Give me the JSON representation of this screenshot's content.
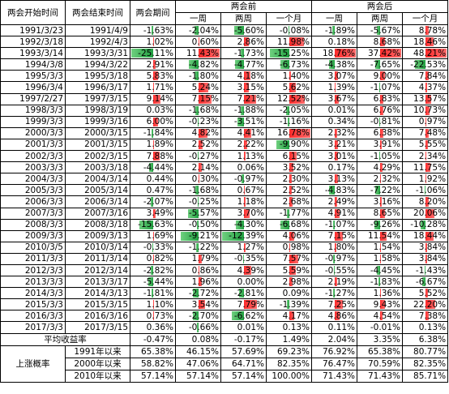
{
  "headers": {
    "start": "两会开始时间",
    "end": "两会结束时间",
    "during": "两会期间",
    "before": {
      "label": "两会前",
      "periods": [
        "一周",
        "两周",
        "一个月"
      ]
    },
    "after": {
      "label": "两会后",
      "periods": [
        "一周",
        "两周",
        "一个月"
      ]
    }
  },
  "rows": [
    [
      "1991/3/23",
      "1991/4/9",
      "-1.63%",
      "-2.04%",
      "-5.60%",
      "-0.08%",
      "-1.89%",
      "-5.67%",
      "8.78%"
    ],
    [
      "1992/3/18",
      "1992/4/3",
      "1.02%",
      "0.60%",
      "2.86%",
      "11.98%",
      "0.18%",
      "8.68%",
      "18.46%"
    ],
    [
      "1993/3/14",
      "1993/3/31",
      "-25.11%",
      "11.43%",
      "-1.73%",
      "-15.25%",
      "18.76%",
      "37.42%",
      "48.21%"
    ],
    [
      "1994/3/8",
      "1994/3/22",
      "2.91%",
      "-4.82%",
      "-4.77%",
      "-6.73%",
      "-4.38%",
      "-7.65%",
      "-22.53%"
    ],
    [
      "1995/3/3",
      "1995/3/18",
      "5.83%",
      "-1.80%",
      "4.18%",
      "1.40%",
      "3.07%",
      "9.00%",
      "7.84%"
    ],
    [
      "1996/3/4",
      "1996/3/17",
      "1.71%",
      "5.24%",
      "3.15%",
      "5.62%",
      "1.39%",
      "-1.07%",
      "4.37%"
    ],
    [
      "1997/2/27",
      "1997/3/15",
      "9.14%",
      "7.15%",
      "7.21%",
      "12.52%",
      "3.67%",
      "6.83%",
      "13.57%"
    ],
    [
      "1998/3/3",
      "1998/3/19",
      "0.03%",
      "-1.68%",
      "-1.88%",
      "-2.05%",
      "0.01%",
      "6.76%",
      "10.73%"
    ],
    [
      "1999/3/3",
      "1999/3/16",
      "6.00%",
      "-0.23%",
      "-3.51%",
      "-1.16%",
      "0.34%",
      "-0.81%",
      "0.97%"
    ],
    [
      "2000/3/3",
      "2000/3/15",
      "-1.84%",
      "4.82%",
      "4.41%",
      "16.78%",
      "2.32%",
      "6.38%",
      "7.48%"
    ],
    [
      "2001/3/3",
      "2001/3/15",
      "1.89%",
      "2.52%",
      "2.22%",
      "-9.90%",
      "3.21%",
      "3.91%",
      "5.55%"
    ],
    [
      "2002/3/3",
      "2002/3/15",
      "7.88%",
      "-0.27%",
      "1.13%",
      "6.15%",
      "3.01%",
      "-1.05%",
      "2.34%"
    ],
    [
      "2003/3/3",
      "2003/3/18",
      "-4.44%",
      "2.14%",
      "0.06%",
      "3.52%",
      "0.17%",
      "4.29%",
      "11.75%"
    ],
    [
      "2004/3/3",
      "2004/3/14",
      "0.44%",
      "0.30%",
      "-0.97%",
      "2.30%",
      "3.13%",
      "2.32%",
      "1.92%"
    ],
    [
      "2005/3/3",
      "2005/3/14",
      "0.47%",
      "-1.68%",
      "0.67%",
      "2.52%",
      "-4.83%",
      "-7.22%",
      "-1.06%"
    ],
    [
      "2006/3/3",
      "2006/3/14",
      "-2.07%",
      "-0.25%",
      "1.18%",
      "2.68%",
      "2.49%",
      "3.16%",
      "8.20%"
    ],
    [
      "2007/3/3",
      "2007/3/16",
      "3.49%",
      "-5.57%",
      "3.70%",
      "-1.77%",
      "4.91%",
      "8.65%",
      "20.06%"
    ],
    [
      "2008/3/3",
      "2008/3/18",
      "-15.63%",
      "-0.50%",
      "-4.30%",
      "-6.68%",
      "-1.07%",
      "-9.26%",
      "-10.28%"
    ],
    [
      "2009/3/3",
      "2009/3/13",
      "1.69%",
      "-9.21%",
      "-12.39%",
      "4.06%",
      "7.15%",
      "11.54%",
      "18.44%"
    ],
    [
      "2010/3/5",
      "2010/3/14",
      "-0.33%",
      "-1.22%",
      "1.27%",
      "0.98%",
      "1.80%",
      "1.54%",
      "3.84%"
    ],
    [
      "2011/3/3",
      "2011/3/14",
      "0.82%",
      "1.79%",
      "-0.35%",
      "7.57%",
      "-0.97%",
      "1.58%",
      "3.84%"
    ],
    [
      "2012/3/3",
      "2012/3/14",
      "-2.82%",
      "0.86%",
      "4.39%",
      "5.59%",
      "-0.55%",
      "-4.45%",
      "-1.43%"
    ],
    [
      "2013/3/3",
      "2013/3/17",
      "-5.44%",
      "1.96%",
      "0.00%",
      "2.98%",
      "2.19%",
      "-1.83%",
      "-6.67%"
    ],
    [
      "2014/3/3",
      "2014/3/13",
      "-1.81%",
      "-2.72%",
      "-2.81%",
      "0.09%",
      "-1.27%",
      "1.36%",
      "5.52%"
    ],
    [
      "2015/3/3",
      "2015/3/15",
      "1.10%",
      "3.54%",
      "7.79%",
      "-1.39%",
      "7.25%",
      "9.43%",
      "22.20%"
    ],
    [
      "2016/3/3",
      "2016/3/16",
      "0.73%",
      "-2.70%",
      "-6.62%",
      "4.17%",
      "4.86%",
      "4.54%",
      "7.38%"
    ],
    [
      "2017/3/3",
      "2017/3/15",
      "0.36%",
      "-0.66%",
      "0.01%",
      "0.13%",
      "0.11%",
      "-0.01%",
      "0.13%"
    ]
  ],
  "summary": {
    "average": {
      "label": "平均收益率",
      "values": [
        "-0.47%",
        "0.08%",
        "-0.17%",
        "1.49%",
        "2.04%",
        "3.35%",
        "6.38%"
      ]
    },
    "up_prob": {
      "label": "上涨概率",
      "rows": [
        {
          "since": "1991年以来",
          "values": [
            "65.38%",
            "46.15%",
            "57.69%",
            "69.23%",
            "76.92%",
            "65.38%",
            "80.77%"
          ]
        },
        {
          "since": "2000年以来",
          "values": [
            "58.82%",
            "47.06%",
            "64.71%",
            "82.35%",
            "76.47%",
            "70.59%",
            "82.35%"
          ]
        },
        {
          "since": "2010年以来",
          "values": [
            "57.14%",
            "57.14%",
            "57.14%",
            "100.00%",
            "71.43%",
            "71.43%",
            "85.71%"
          ]
        }
      ]
    }
  }
}
